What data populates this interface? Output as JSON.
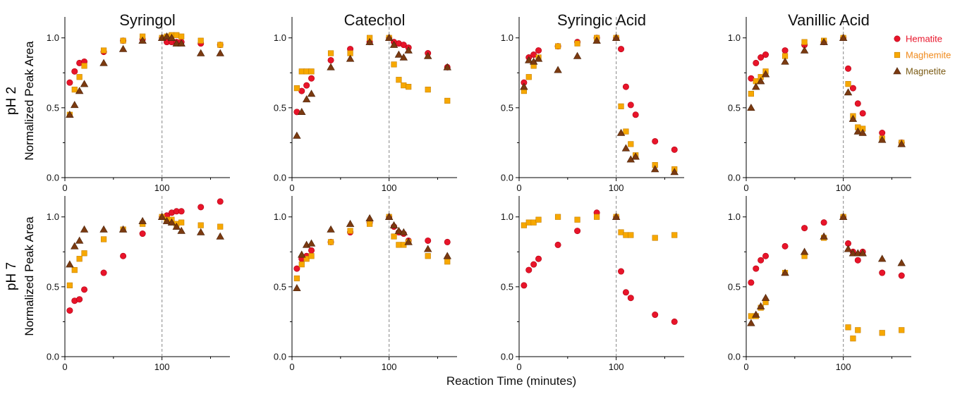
{
  "figure": {
    "xlabel": "Reaction Time (minutes)",
    "row_labels": [
      "pH 2",
      "pH 7"
    ],
    "ylabel": "Normalized Peak Area",
    "legend": [
      {
        "name": "Hematite",
        "color": "#e8142a",
        "marker": "circle"
      },
      {
        "name": "Maghemite",
        "color": "#f7a800",
        "marker": "square"
      },
      {
        "name": "Magnetite",
        "color": "#7b3a10",
        "marker": "triangle"
      }
    ],
    "colors": {
      "hematite": "#e8142a",
      "maghemite": "#f7a800",
      "magnetite": "#7b3a10",
      "legend_maghemite_text": "#f08a1c",
      "legend_magnetite_text": "#7a5a14",
      "vline": "#999999"
    }
  },
  "chart_data": [
    {
      "type": "scatter",
      "title": "Syringol",
      "row": "pH 2",
      "xlim": [
        0,
        170
      ],
      "ylim": [
        0,
        1.15
      ],
      "xticks": [
        0,
        100
      ],
      "yticks": [
        0.0,
        0.5,
        1.0
      ],
      "tick_labels_x": [
        "0",
        "100"
      ],
      "tick_labels_y": [
        "0.0",
        "0.5",
        "1.0"
      ],
      "vline": 100,
      "grid": false,
      "series": [
        {
          "name": "Hematite",
          "x": [
            5,
            10,
            15,
            20,
            40,
            60,
            80,
            100,
            105,
            110,
            115,
            120,
            140,
            160
          ],
          "y": [
            0.68,
            0.76,
            0.82,
            0.83,
            0.9,
            0.98,
            0.99,
            1.0,
            0.97,
            0.97,
            0.97,
            0.97,
            0.96,
            0.95
          ]
        },
        {
          "name": "Maghemite",
          "x": [
            5,
            10,
            15,
            20,
            40,
            60,
            80,
            100,
            105,
            110,
            115,
            120,
            140,
            160
          ],
          "y": [
            0.45,
            0.63,
            0.72,
            0.8,
            0.91,
            0.98,
            1.01,
            1.0,
            1.01,
            1.02,
            1.02,
            1.01,
            0.98,
            0.95
          ]
        },
        {
          "name": "Magnetite",
          "x": [
            5,
            10,
            15,
            20,
            40,
            60,
            80,
            100,
            105,
            110,
            115,
            120,
            140,
            160
          ],
          "y": [
            0.45,
            0.52,
            0.62,
            0.67,
            0.82,
            0.92,
            0.98,
            1.0,
            1.01,
            1.0,
            0.96,
            0.96,
            0.89,
            0.89
          ]
        }
      ]
    },
    {
      "type": "scatter",
      "title": "Catechol",
      "row": "pH 2",
      "xlim": [
        0,
        170
      ],
      "ylim": [
        0,
        1.15
      ],
      "xticks": [
        0,
        100
      ],
      "yticks": [
        0.0,
        0.5,
        1.0
      ],
      "tick_labels_x": [
        "0",
        "100"
      ],
      "tick_labels_y": [
        "0.0",
        "0.5",
        "1.0"
      ],
      "vline": 100,
      "grid": false,
      "series": [
        {
          "name": "Hematite",
          "x": [
            5,
            10,
            15,
            20,
            40,
            60,
            80,
            100,
            105,
            110,
            115,
            120,
            140,
            160
          ],
          "y": [
            0.47,
            0.62,
            0.66,
            0.71,
            0.84,
            0.92,
            0.97,
            1.0,
            0.97,
            0.96,
            0.95,
            0.93,
            0.89,
            0.79
          ]
        },
        {
          "name": "Maghemite",
          "x": [
            5,
            10,
            15,
            20,
            40,
            60,
            80,
            100,
            105,
            110,
            115,
            120,
            140,
            160
          ],
          "y": [
            0.64,
            0.76,
            0.76,
            0.76,
            0.89,
            0.89,
            1.0,
            1.0,
            0.81,
            0.7,
            0.66,
            0.65,
            0.63,
            0.55
          ]
        },
        {
          "name": "Magnetite",
          "x": [
            5,
            10,
            15,
            20,
            40,
            60,
            80,
            100,
            105,
            110,
            115,
            120,
            140,
            160
          ],
          "y": [
            0.3,
            0.47,
            0.56,
            0.6,
            0.79,
            0.85,
            0.97,
            1.0,
            0.95,
            0.88,
            0.86,
            0.91,
            0.87,
            0.79
          ]
        }
      ]
    },
    {
      "type": "scatter",
      "title": "Syringic Acid",
      "row": "pH 2",
      "xlim": [
        0,
        170
      ],
      "ylim": [
        0,
        1.15
      ],
      "xticks": [
        0,
        100
      ],
      "yticks": [
        0.0,
        0.5,
        1.0
      ],
      "tick_labels_x": [
        "0",
        "100"
      ],
      "tick_labels_y": [
        "0.0",
        "0.5",
        "1.0"
      ],
      "vline": 100,
      "grid": false,
      "series": [
        {
          "name": "Hematite",
          "x": [
            5,
            10,
            15,
            20,
            40,
            60,
            80,
            100,
            105,
            110,
            115,
            120,
            140,
            160
          ],
          "y": [
            0.68,
            0.86,
            0.88,
            0.91,
            0.94,
            0.97,
            1.0,
            1.0,
            0.92,
            0.65,
            0.52,
            0.45,
            0.26,
            0.2
          ]
        },
        {
          "name": "Maghemite",
          "x": [
            5,
            10,
            15,
            20,
            40,
            60,
            80,
            100,
            105,
            110,
            115,
            120,
            140,
            160
          ],
          "y": [
            0.62,
            0.72,
            0.8,
            0.86,
            0.94,
            0.96,
            1.0,
            1.0,
            0.51,
            0.33,
            0.24,
            0.16,
            0.09,
            0.06
          ]
        },
        {
          "name": "Magnetite",
          "x": [
            5,
            10,
            15,
            20,
            40,
            60,
            80,
            100,
            105,
            110,
            115,
            120,
            140,
            160
          ],
          "y": [
            0.65,
            0.84,
            0.83,
            0.85,
            0.77,
            0.87,
            0.98,
            1.0,
            0.32,
            0.21,
            0.13,
            0.15,
            0.06,
            0.04
          ]
        }
      ]
    },
    {
      "type": "scatter",
      "title": "Vanillic Acid",
      "row": "pH 2",
      "xlim": [
        0,
        170
      ],
      "ylim": [
        0,
        1.15
      ],
      "xticks": [
        0,
        100
      ],
      "yticks": [
        0.0,
        0.5,
        1.0
      ],
      "tick_labels_x": [
        "0",
        "100"
      ],
      "tick_labels_y": [
        "0.0",
        "0.5",
        "1.0"
      ],
      "vline": 100,
      "grid": false,
      "series": [
        {
          "name": "Hematite",
          "x": [
            5,
            10,
            15,
            20,
            40,
            60,
            80,
            100,
            105,
            110,
            115,
            120,
            140,
            160
          ],
          "y": [
            0.71,
            0.82,
            0.86,
            0.88,
            0.91,
            0.95,
            0.97,
            1.0,
            0.78,
            0.64,
            0.53,
            0.46,
            0.32,
            0.25
          ]
        },
        {
          "name": "Maghemite",
          "x": [
            5,
            10,
            15,
            20,
            40,
            60,
            80,
            100,
            105,
            110,
            115,
            120,
            140,
            160
          ],
          "y": [
            0.6,
            0.69,
            0.72,
            0.76,
            0.87,
            0.97,
            0.98,
            1.0,
            0.67,
            0.44,
            0.36,
            0.35,
            0.28,
            0.25
          ]
        },
        {
          "name": "Magnetite",
          "x": [
            5,
            10,
            15,
            20,
            40,
            60,
            80,
            100,
            105,
            110,
            115,
            120,
            140,
            160
          ],
          "y": [
            0.5,
            0.65,
            0.69,
            0.74,
            0.83,
            0.91,
            0.97,
            1.0,
            0.61,
            0.42,
            0.33,
            0.32,
            0.27,
            0.24
          ]
        }
      ]
    },
    {
      "type": "scatter",
      "title": "",
      "row": "pH 7",
      "xlim": [
        0,
        170
      ],
      "ylim": [
        0,
        1.15
      ],
      "xticks": [
        0,
        100
      ],
      "yticks": [
        0.0,
        0.5,
        1.0
      ],
      "tick_labels_x": [
        "0",
        "100"
      ],
      "tick_labels_y": [
        "0.0",
        "0.5",
        "1.0"
      ],
      "vline": 100,
      "grid": false,
      "series": [
        {
          "name": "Hematite",
          "x": [
            5,
            10,
            15,
            20,
            40,
            60,
            80,
            100,
            105,
            110,
            115,
            120,
            140,
            160
          ],
          "y": [
            0.33,
            0.4,
            0.41,
            0.48,
            0.6,
            0.72,
            0.88,
            1.0,
            1.01,
            1.03,
            1.04,
            1.04,
            1.07,
            1.11
          ]
        },
        {
          "name": "Maghemite",
          "x": [
            5,
            10,
            15,
            20,
            40,
            60,
            80,
            100,
            105,
            110,
            115,
            120,
            140,
            160
          ],
          "y": [
            0.51,
            0.62,
            0.7,
            0.74,
            0.84,
            0.91,
            0.95,
            1.0,
            0.98,
            0.98,
            0.95,
            0.96,
            0.94,
            0.93
          ]
        },
        {
          "name": "Magnetite",
          "x": [
            5,
            10,
            15,
            20,
            40,
            60,
            80,
            100,
            105,
            110,
            115,
            120,
            140,
            160
          ],
          "y": [
            0.66,
            0.79,
            0.83,
            0.91,
            0.91,
            0.91,
            0.97,
            1.0,
            0.97,
            0.96,
            0.93,
            0.9,
            0.89,
            0.86
          ]
        }
      ]
    },
    {
      "type": "scatter",
      "title": "",
      "row": "pH 7",
      "xlim": [
        0,
        170
      ],
      "ylim": [
        0,
        1.15
      ],
      "xticks": [
        0,
        100
      ],
      "yticks": [
        0.0,
        0.5,
        1.0
      ],
      "tick_labels_x": [
        "0",
        "100"
      ],
      "tick_labels_y": [
        "0.0",
        "0.5",
        "1.0"
      ],
      "vline": 100,
      "grid": false,
      "series": [
        {
          "name": "Hematite",
          "x": [
            5,
            10,
            15,
            20,
            40,
            60,
            80,
            100,
            105,
            110,
            115,
            120,
            140,
            160
          ],
          "y": [
            0.63,
            0.7,
            0.72,
            0.76,
            0.82,
            0.89,
            0.96,
            1.0,
            0.93,
            0.89,
            0.88,
            0.83,
            0.83,
            0.82
          ]
        },
        {
          "name": "Maghemite",
          "x": [
            5,
            10,
            15,
            20,
            40,
            60,
            80,
            100,
            105,
            110,
            115,
            120,
            140,
            160
          ],
          "y": [
            0.56,
            0.66,
            0.7,
            0.72,
            0.82,
            0.9,
            0.95,
            1.0,
            0.86,
            0.8,
            0.8,
            0.82,
            0.72,
            0.68
          ]
        },
        {
          "name": "Magnetite",
          "x": [
            5,
            10,
            15,
            20,
            40,
            60,
            80,
            100,
            105,
            110,
            115,
            120,
            140,
            160
          ],
          "y": [
            0.49,
            0.73,
            0.8,
            0.81,
            0.91,
            0.95,
            0.99,
            1.0,
            0.94,
            0.9,
            0.89,
            0.82,
            0.77,
            0.72
          ]
        }
      ]
    },
    {
      "type": "scatter",
      "title": "",
      "row": "pH 7",
      "xlim": [
        0,
        170
      ],
      "ylim": [
        0,
        1.15
      ],
      "xticks": [
        0,
        100
      ],
      "yticks": [
        0.0,
        0.5,
        1.0
      ],
      "tick_labels_x": [
        "0",
        "100"
      ],
      "tick_labels_y": [
        "0.0",
        "0.5",
        "1.0"
      ],
      "vline": 100,
      "grid": false,
      "series": [
        {
          "name": "Hematite",
          "x": [
            5,
            10,
            15,
            20,
            40,
            60,
            80,
            100,
            105,
            110,
            115,
            140,
            160
          ],
          "y": [
            0.51,
            0.62,
            0.66,
            0.7,
            0.8,
            0.9,
            1.03,
            1.0,
            0.61,
            0.46,
            0.42,
            0.3,
            0.25
          ]
        },
        {
          "name": "Maghemite",
          "x": [
            5,
            10,
            15,
            20,
            40,
            60,
            80,
            100,
            105,
            110,
            115,
            140,
            160
          ],
          "y": [
            0.94,
            0.96,
            0.96,
            0.98,
            1.0,
            0.98,
            1.0,
            1.0,
            0.89,
            0.87,
            0.87,
            0.85,
            0.87
          ]
        },
        {
          "name": "Magnetite",
          "x": [
            100
          ],
          "y": [
            1.0
          ]
        }
      ]
    },
    {
      "type": "scatter",
      "title": "",
      "row": "pH 7",
      "xlim": [
        0,
        170
      ],
      "ylim": [
        0,
        1.15
      ],
      "xticks": [
        0,
        100
      ],
      "yticks": [
        0.0,
        0.5,
        1.0
      ],
      "tick_labels_x": [
        "0",
        "100"
      ],
      "tick_labels_y": [
        "0.0",
        "0.5",
        "1.0"
      ],
      "vline": 100,
      "grid": false,
      "series": [
        {
          "name": "Hematite",
          "x": [
            5,
            10,
            15,
            20,
            40,
            60,
            80,
            100,
            105,
            110,
            115,
            120,
            140,
            160
          ],
          "y": [
            0.53,
            0.63,
            0.69,
            0.72,
            0.79,
            0.92,
            0.96,
            1.0,
            0.81,
            0.75,
            0.69,
            0.75,
            0.6,
            0.58
          ]
        },
        {
          "name": "Maghemite",
          "x": [
            5,
            10,
            15,
            20,
            40,
            60,
            80,
            100,
            105,
            110,
            115,
            140,
            160
          ],
          "y": [
            0.29,
            0.29,
            0.35,
            0.39,
            0.6,
            0.72,
            0.85,
            1.0,
            0.21,
            0.13,
            0.19,
            0.17,
            0.19
          ]
        },
        {
          "name": "Magnetite",
          "x": [
            5,
            10,
            15,
            20,
            40,
            60,
            80,
            100,
            105,
            110,
            115,
            120,
            140,
            160
          ],
          "y": [
            0.24,
            0.3,
            0.36,
            0.42,
            0.6,
            0.75,
            0.86,
            1.0,
            0.77,
            0.74,
            0.74,
            0.74,
            0.7,
            0.67
          ]
        }
      ]
    }
  ]
}
